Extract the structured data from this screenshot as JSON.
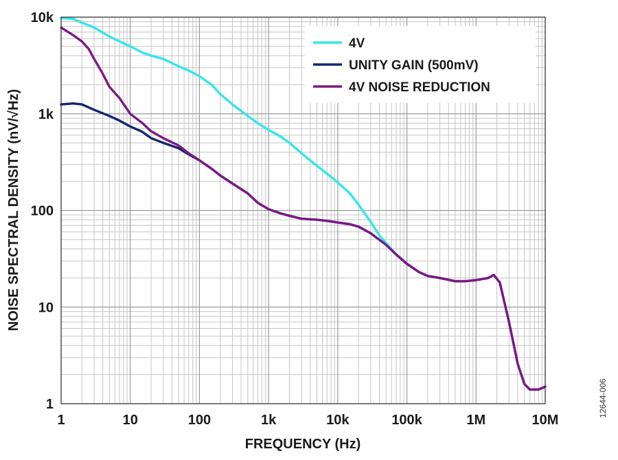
{
  "figure_id": "12644-006",
  "chart_data": {
    "type": "line",
    "xlabel": "FREQUENCY (Hz)",
    "ylabel": "NOISE SPECTRAL DENSITY (nV/√Hz)",
    "x_scale": "log",
    "y_scale": "log",
    "xlim": [
      1,
      10000000
    ],
    "ylim": [
      1,
      10000
    ],
    "grid": true,
    "legend_position": "top-right",
    "x_ticks": [
      {
        "value": 1,
        "label": "1"
      },
      {
        "value": 10,
        "label": "10"
      },
      {
        "value": 100,
        "label": "100"
      },
      {
        "value": 1000,
        "label": "1k"
      },
      {
        "value": 10000,
        "label": "10k"
      },
      {
        "value": 100000,
        "label": "100k"
      },
      {
        "value": 1000000,
        "label": "1M"
      },
      {
        "value": 10000000,
        "label": "10M"
      }
    ],
    "y_ticks": [
      {
        "value": 1,
        "label": "1"
      },
      {
        "value": 10,
        "label": "10"
      },
      {
        "value": 100,
        "label": "100"
      },
      {
        "value": 1000,
        "label": "1k"
      },
      {
        "value": 10000,
        "label": "10k"
      }
    ],
    "series": [
      {
        "name": "4V",
        "color": "#33e6ea",
        "points": [
          [
            1,
            9800
          ],
          [
            1.5,
            9600
          ],
          [
            2,
            8800
          ],
          [
            3,
            7800
          ],
          [
            5,
            6300
          ],
          [
            7,
            5600
          ],
          [
            10,
            5000
          ],
          [
            15,
            4300
          ],
          [
            20,
            4000
          ],
          [
            30,
            3700
          ],
          [
            50,
            3100
          ],
          [
            70,
            2800
          ],
          [
            100,
            2450
          ],
          [
            150,
            2000
          ],
          [
            200,
            1600
          ],
          [
            300,
            1250
          ],
          [
            500,
            950
          ],
          [
            700,
            800
          ],
          [
            1000,
            680
          ],
          [
            1500,
            580
          ],
          [
            2000,
            500
          ],
          [
            3000,
            390
          ],
          [
            5000,
            290
          ],
          [
            7000,
            240
          ],
          [
            10000,
            195
          ],
          [
            15000,
            150
          ],
          [
            20000,
            115
          ],
          [
            30000,
            76
          ],
          [
            40000,
            55
          ],
          [
            50000,
            46
          ],
          [
            70000,
            35
          ],
          [
            100000,
            28
          ]
        ]
      },
      {
        "name": "UNITY GAIN (500mV)",
        "color": "#14256e",
        "points": [
          [
            1,
            1250
          ],
          [
            1.5,
            1280
          ],
          [
            2,
            1250
          ],
          [
            3,
            1100
          ],
          [
            5,
            950
          ],
          [
            7,
            850
          ],
          [
            10,
            740
          ],
          [
            15,
            650
          ],
          [
            20,
            560
          ],
          [
            30,
            500
          ],
          [
            50,
            440
          ],
          [
            70,
            380
          ],
          [
            100,
            330
          ],
          [
            150,
            270
          ],
          [
            200,
            230
          ],
          [
            300,
            190
          ],
          [
            500,
            150
          ],
          [
            700,
            120
          ],
          [
            1000,
            103
          ],
          [
            1500,
            93
          ],
          [
            2000,
            88
          ],
          [
            3000,
            82
          ],
          [
            5000,
            80
          ],
          [
            7000,
            78
          ],
          [
            10000,
            75
          ],
          [
            15000,
            72
          ],
          [
            20000,
            68
          ],
          [
            30000,
            58
          ],
          [
            50000,
            44
          ],
          [
            70000,
            35
          ],
          [
            100000,
            28
          ],
          [
            150000,
            23
          ],
          [
            200000,
            21
          ],
          [
            300000,
            20
          ],
          [
            500000,
            18.5
          ],
          [
            700000,
            18.5
          ],
          [
            1000000,
            19
          ],
          [
            1500000,
            20
          ],
          [
            1800000,
            21.5
          ],
          [
            2200000,
            18
          ],
          [
            3000000,
            7
          ],
          [
            4000000,
            2.6
          ],
          [
            5000000,
            1.6
          ],
          [
            6000000,
            1.4
          ],
          [
            8000000,
            1.4
          ],
          [
            10000000,
            1.5
          ]
        ]
      },
      {
        "name": "4V NOISE REDUCTION",
        "color": "#7a1a82",
        "points": [
          [
            1,
            7800
          ],
          [
            1.5,
            6500
          ],
          [
            2,
            5600
          ],
          [
            2.5,
            4700
          ],
          [
            3,
            3700
          ],
          [
            4,
            2600
          ],
          [
            5,
            1900
          ],
          [
            7,
            1450
          ],
          [
            10,
            1000
          ],
          [
            15,
            800
          ],
          [
            20,
            660
          ],
          [
            30,
            560
          ],
          [
            50,
            470
          ],
          [
            70,
            390
          ],
          [
            100,
            330
          ],
          [
            150,
            270
          ],
          [
            200,
            230
          ],
          [
            300,
            190
          ],
          [
            500,
            150
          ],
          [
            700,
            120
          ],
          [
            1000,
            103
          ],
          [
            1500,
            93
          ],
          [
            2000,
            88
          ],
          [
            3000,
            82
          ],
          [
            5000,
            80
          ],
          [
            7000,
            78
          ],
          [
            10000,
            75
          ],
          [
            15000,
            72
          ],
          [
            20000,
            68
          ],
          [
            30000,
            58
          ],
          [
            50000,
            44
          ],
          [
            70000,
            35
          ],
          [
            100000,
            28
          ],
          [
            150000,
            23
          ],
          [
            200000,
            21
          ],
          [
            300000,
            20
          ],
          [
            500000,
            18.5
          ],
          [
            700000,
            18.5
          ],
          [
            1000000,
            19
          ],
          [
            1500000,
            20
          ],
          [
            1800000,
            21.5
          ],
          [
            2200000,
            18
          ],
          [
            3000000,
            7
          ],
          [
            4000000,
            2.6
          ],
          [
            5000000,
            1.6
          ],
          [
            6000000,
            1.4
          ],
          [
            8000000,
            1.4
          ],
          [
            10000000,
            1.5
          ]
        ]
      }
    ]
  }
}
